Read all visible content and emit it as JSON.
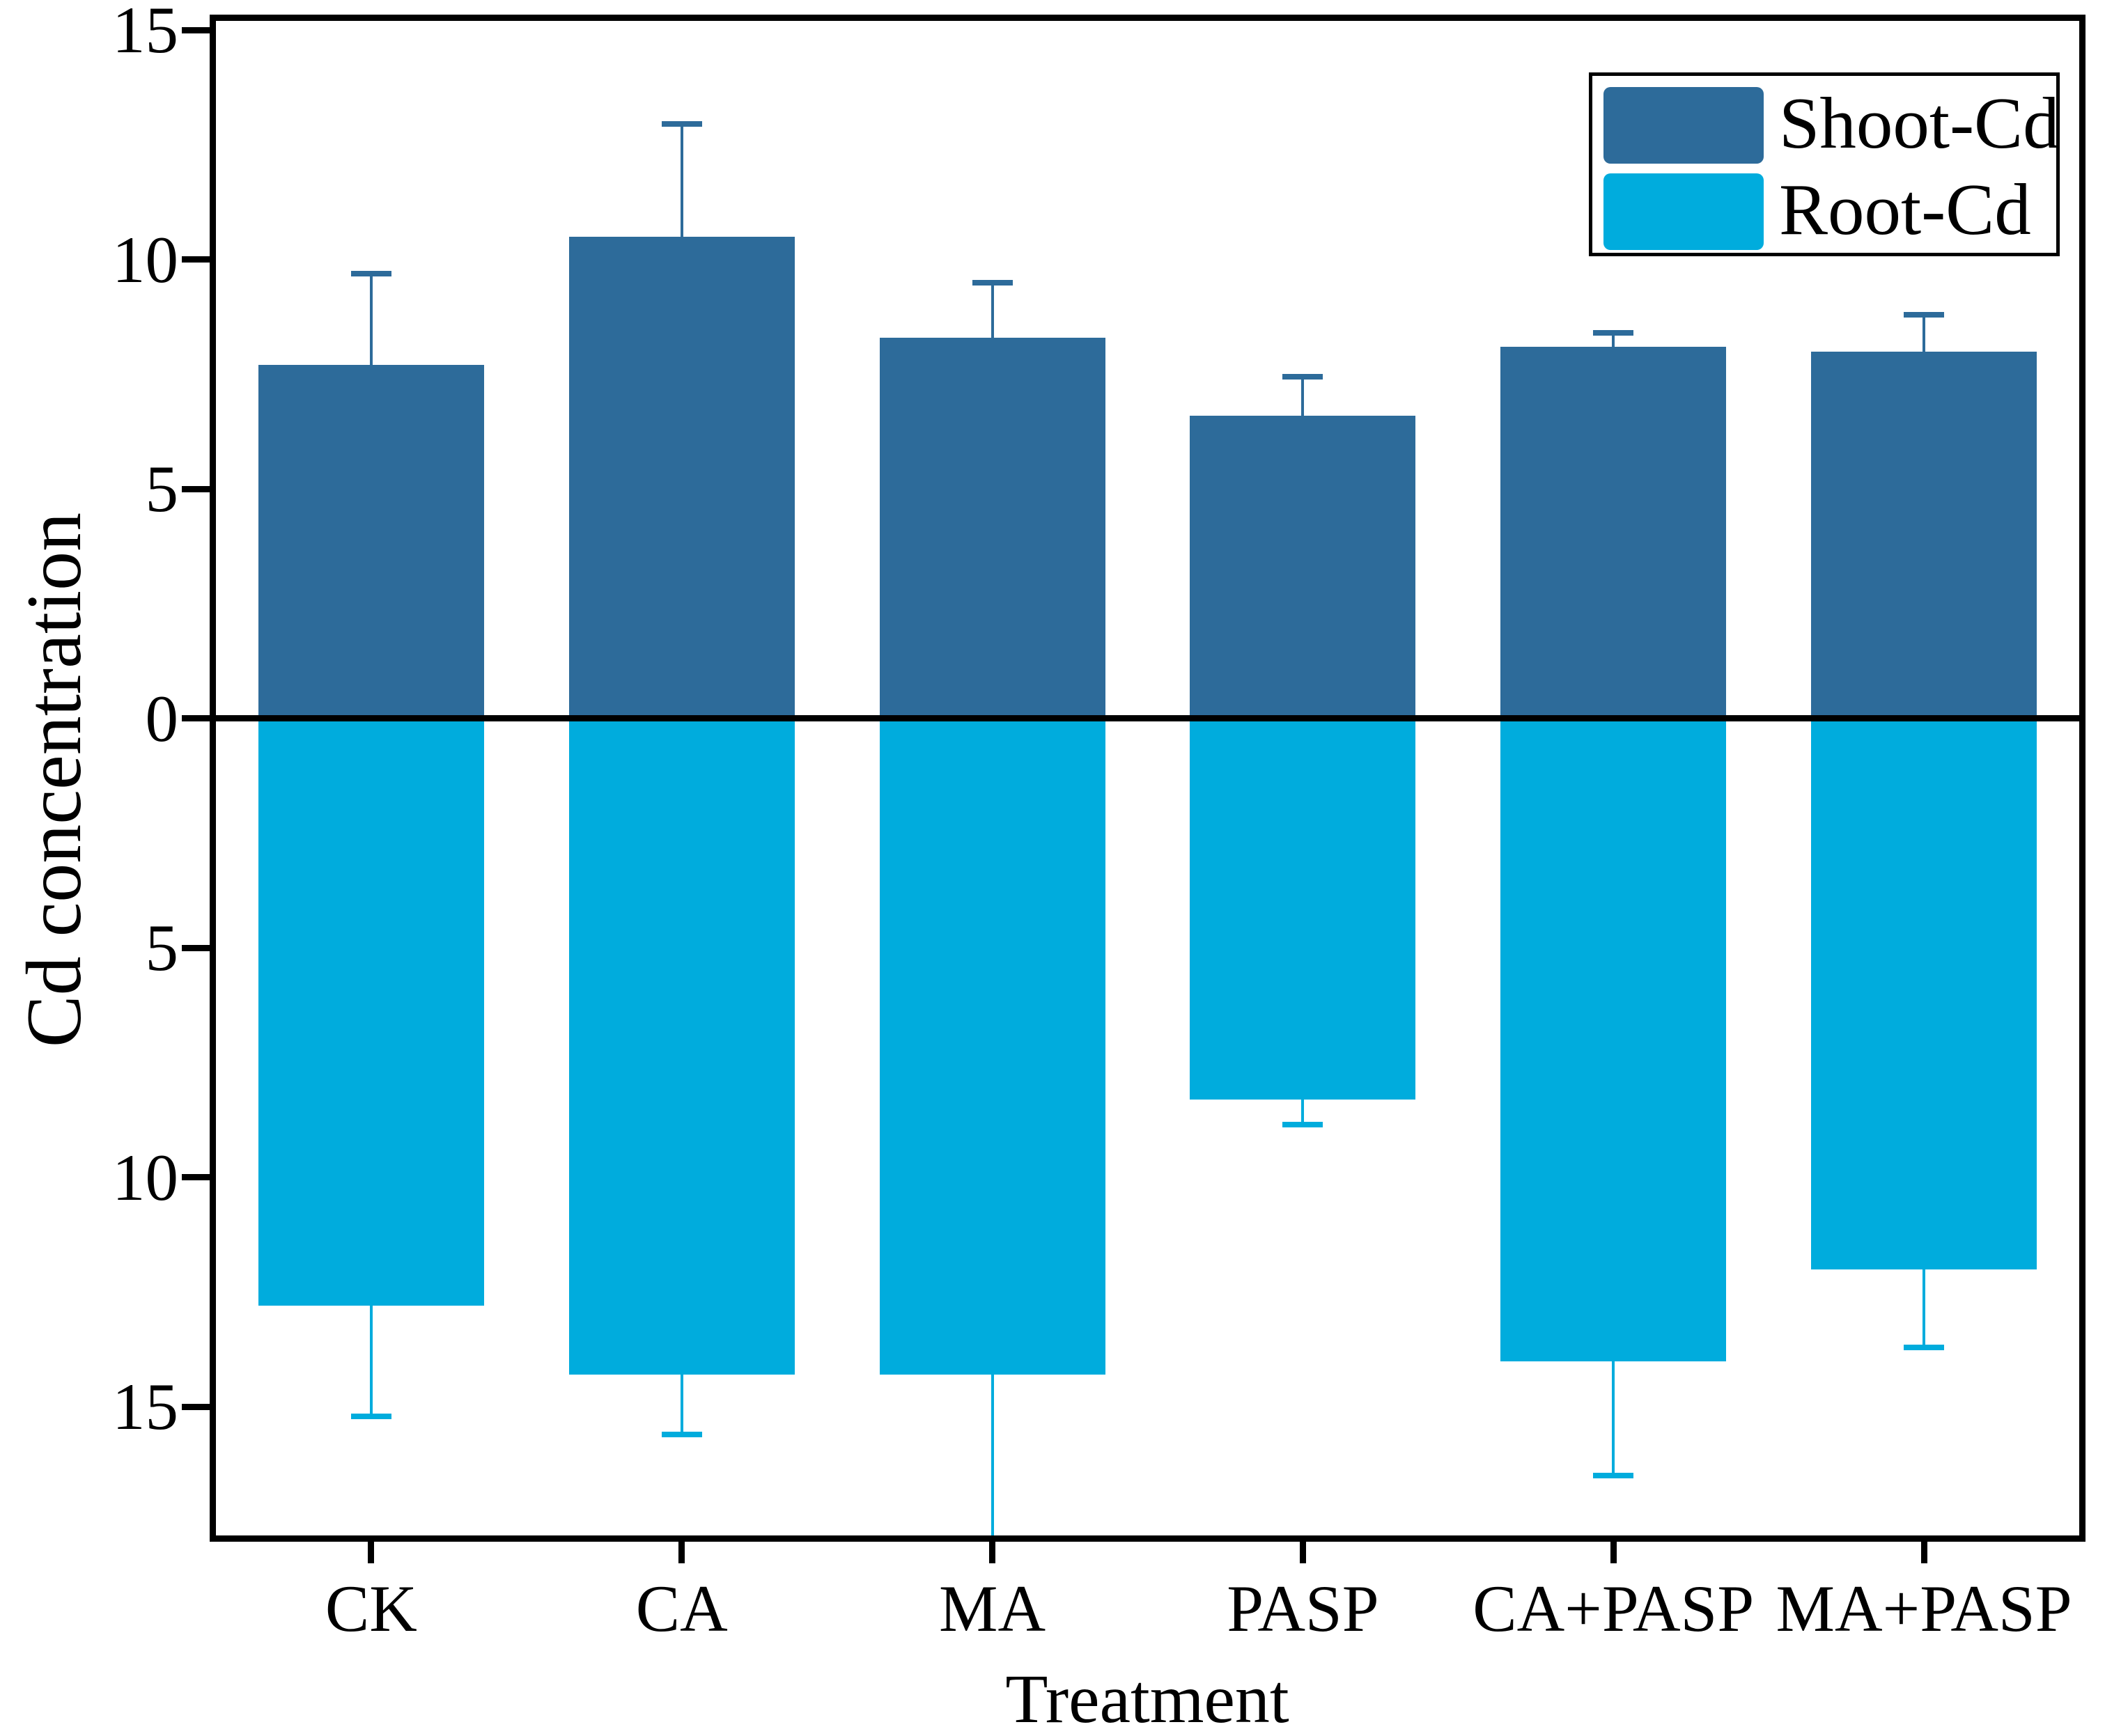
{
  "figure": {
    "background": "#ffffff",
    "axis_color": "#000000",
    "text_color": "#000000"
  },
  "chart_data": {
    "type": "bar",
    "title": "",
    "xlabel": "Treatment",
    "ylabel": "Cd concentration",
    "categories": [
      "CK",
      "CA",
      "MA",
      "PASP",
      "CA+PASP",
      "MA+PASP"
    ],
    "orientation": "diverging-vertical",
    "series": [
      {
        "name": "Shoot-Cd",
        "color": "#2D6B9A",
        "direction": "up",
        "values": [
          7.7,
          10.5,
          8.3,
          6.6,
          8.1,
          8.0
        ],
        "errors": [
          2.0,
          2.45,
          1.2,
          0.85,
          0.3,
          0.8
        ]
      },
      {
        "name": "Root-Cd",
        "color": "#00ACDD",
        "direction": "down",
        "values_are_downward_magnitudes": true,
        "values": [
          12.8,
          14.3,
          14.3,
          8.3,
          14.0,
          12.0
        ],
        "errors": [
          2.4,
          1.3,
          3.8,
          0.55,
          2.5,
          1.7
        ]
      }
    ],
    "y_axis": {
      "tick_labels": [
        "15",
        "10",
        "5",
        "0",
        "5",
        "10",
        "15"
      ],
      "tick_values": [
        15,
        10,
        5,
        0,
        -5,
        -10,
        -15
      ],
      "ymax": 15.2,
      "ymin": -17.8,
      "grid": false
    },
    "legend": {
      "position": "top-right",
      "entries": [
        "Shoot-Cd",
        "Root-Cd"
      ]
    }
  }
}
